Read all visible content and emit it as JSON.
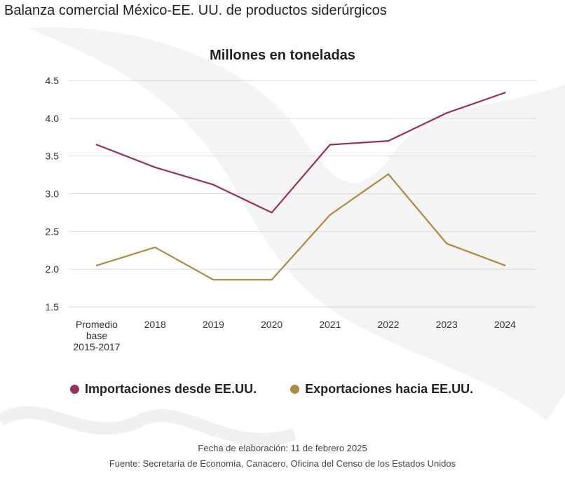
{
  "page_title": "Balanza comercial México-EE. UU. de productos siderúrgicos",
  "footer": {
    "date": "Fecha de elaboración: 11 de febrero 2025",
    "source": "Fuente: Secretaría de Economía, Canacero, Oficina del Censo de los Estados Unidos"
  },
  "chart_data": {
    "type": "line",
    "title": "Millones en toneladas",
    "xlabel": "",
    "ylabel": "",
    "categories": [
      [
        "Promedio",
        "base",
        "2015-2017"
      ],
      "2018",
      "2019",
      "2020",
      "2021",
      "2022",
      "2023",
      "2024"
    ],
    "ylim": [
      1.5,
      4.5
    ],
    "yticks": [
      "1.5",
      "2.0",
      "2.5",
      "3.0",
      "3.5",
      "4.0",
      "4.5"
    ],
    "grid": true,
    "legend_position": "bottom",
    "series": [
      {
        "name": "Importaciones desde EE.UU.",
        "color": "#9b2e5a",
        "values": [
          3.65,
          3.35,
          3.12,
          2.75,
          3.65,
          3.7,
          4.07,
          4.34
        ]
      },
      {
        "name": "Exportaciones hacia EE.UU.",
        "color": "#b18a3e",
        "values": [
          2.05,
          2.29,
          1.86,
          1.86,
          2.72,
          3.26,
          2.34,
          2.05
        ]
      }
    ]
  }
}
